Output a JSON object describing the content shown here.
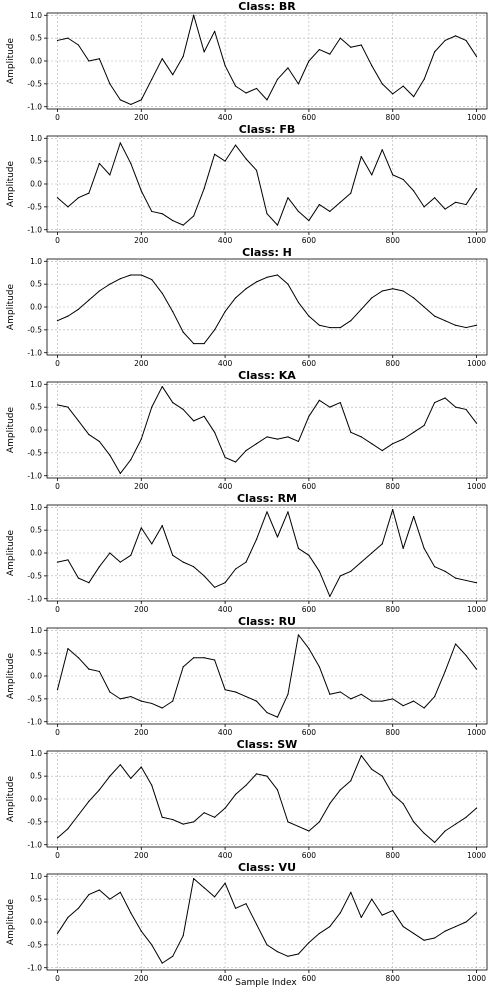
{
  "figure": {
    "xlabel": "Sample Index",
    "ylabel": "Amplitude"
  },
  "chart_data": [
    {
      "type": "line",
      "title": "Class: BR",
      "ylabel": "Amplitude",
      "xlabel": "",
      "xlim": [
        -25,
        1025
      ],
      "ylim": [
        -1.05,
        1.05
      ],
      "xticks": [
        0,
        200,
        400,
        600,
        800,
        1000
      ],
      "yticks": [
        -1.0,
        -0.5,
        0.0,
        0.5,
        1.0
      ],
      "grid": true,
      "x": [
        0,
        25,
        50,
        75,
        100,
        125,
        150,
        175,
        200,
        225,
        250,
        275,
        300,
        325,
        350,
        375,
        400,
        425,
        450,
        475,
        500,
        525,
        550,
        575,
        600,
        625,
        650,
        675,
        700,
        725,
        750,
        775,
        800,
        825,
        850,
        875,
        900,
        925,
        950,
        975,
        1000
      ],
      "series": [
        {
          "values": [
            0.45,
            0.5,
            0.35,
            0.0,
            0.05,
            -0.5,
            -0.85,
            -0.95,
            -0.85,
            -0.4,
            0.05,
            -0.3,
            0.1,
            1.0,
            0.2,
            0.65,
            -0.1,
            -0.55,
            -0.7,
            -0.6,
            -0.85,
            -0.4,
            -0.15,
            -0.5,
            0.0,
            0.25,
            0.15,
            0.5,
            0.3,
            0.35,
            -0.1,
            -0.5,
            -0.72,
            -0.55,
            -0.78,
            -0.4,
            0.2,
            0.45,
            0.55,
            0.45,
            0.1
          ]
        }
      ]
    },
    {
      "type": "line",
      "title": "Class: FB",
      "ylabel": "Amplitude",
      "xlabel": "",
      "xlim": [
        -25,
        1025
      ],
      "ylim": [
        -1.05,
        1.05
      ],
      "xticks": [
        0,
        200,
        400,
        600,
        800,
        1000
      ],
      "yticks": [
        -1.0,
        -0.5,
        0.0,
        0.5,
        1.0
      ],
      "grid": true,
      "x": [
        0,
        25,
        50,
        75,
        100,
        125,
        150,
        175,
        200,
        225,
        250,
        275,
        300,
        325,
        350,
        375,
        400,
        425,
        450,
        475,
        500,
        525,
        550,
        575,
        600,
        625,
        650,
        675,
        700,
        725,
        750,
        775,
        800,
        825,
        850,
        875,
        900,
        925,
        950,
        975,
        1000
      ],
      "series": [
        {
          "values": [
            -0.3,
            -0.5,
            -0.3,
            -0.2,
            0.45,
            0.2,
            0.9,
            0.45,
            -0.15,
            -0.6,
            -0.65,
            -0.8,
            -0.9,
            -0.7,
            -0.1,
            0.65,
            0.5,
            0.85,
            0.55,
            0.3,
            -0.65,
            -0.9,
            -0.3,
            -0.6,
            -0.8,
            -0.45,
            -0.6,
            -0.4,
            -0.2,
            0.6,
            0.2,
            0.75,
            0.2,
            0.1,
            -0.15,
            -0.5,
            -0.3,
            -0.55,
            -0.4,
            -0.45,
            -0.1
          ]
        }
      ]
    },
    {
      "type": "line",
      "title": "Class: H",
      "ylabel": "Amplitude",
      "xlabel": "",
      "xlim": [
        -25,
        1025
      ],
      "ylim": [
        -1.05,
        1.05
      ],
      "xticks": [
        0,
        200,
        400,
        600,
        800,
        1000
      ],
      "yticks": [
        -1.0,
        -0.5,
        0.0,
        0.5,
        1.0
      ],
      "grid": true,
      "x": [
        0,
        25,
        50,
        75,
        100,
        125,
        150,
        175,
        200,
        225,
        250,
        275,
        300,
        325,
        350,
        375,
        400,
        425,
        450,
        475,
        500,
        525,
        550,
        575,
        600,
        625,
        650,
        675,
        700,
        725,
        750,
        775,
        800,
        825,
        850,
        875,
        900,
        925,
        950,
        975,
        1000
      ],
      "series": [
        {
          "values": [
            -0.3,
            -0.2,
            -0.05,
            0.15,
            0.35,
            0.5,
            0.62,
            0.7,
            0.7,
            0.6,
            0.3,
            -0.1,
            -0.55,
            -0.8,
            -0.8,
            -0.5,
            -0.1,
            0.2,
            0.4,
            0.55,
            0.65,
            0.7,
            0.5,
            0.1,
            -0.2,
            -0.4,
            -0.45,
            -0.45,
            -0.3,
            -0.05,
            0.2,
            0.35,
            0.4,
            0.35,
            0.2,
            0.0,
            -0.2,
            -0.3,
            -0.4,
            -0.45,
            -0.4
          ]
        }
      ]
    },
    {
      "type": "line",
      "title": "Class: KA",
      "ylabel": "Amplitude",
      "xlabel": "",
      "xlim": [
        -25,
        1025
      ],
      "ylim": [
        -1.05,
        1.05
      ],
      "xticks": [
        0,
        200,
        400,
        600,
        800,
        1000
      ],
      "yticks": [
        -1.0,
        -0.5,
        0.0,
        0.5,
        1.0
      ],
      "grid": true,
      "x": [
        0,
        25,
        50,
        75,
        100,
        125,
        150,
        175,
        200,
        225,
        250,
        275,
        300,
        325,
        350,
        375,
        400,
        425,
        450,
        475,
        500,
        525,
        550,
        575,
        600,
        625,
        650,
        675,
        700,
        725,
        750,
        775,
        800,
        825,
        850,
        875,
        900,
        925,
        950,
        975,
        1000
      ],
      "series": [
        {
          "values": [
            0.55,
            0.5,
            0.2,
            -0.1,
            -0.25,
            -0.55,
            -0.95,
            -0.65,
            -0.2,
            0.5,
            0.95,
            0.6,
            0.45,
            0.2,
            0.3,
            -0.05,
            -0.6,
            -0.7,
            -0.45,
            -0.3,
            -0.15,
            -0.2,
            -0.15,
            -0.25,
            0.3,
            0.65,
            0.5,
            0.6,
            -0.05,
            -0.15,
            -0.3,
            -0.45,
            -0.3,
            -0.2,
            -0.05,
            0.1,
            0.6,
            0.7,
            0.5,
            0.45,
            0.15
          ]
        }
      ]
    },
    {
      "type": "line",
      "title": "Class: RM",
      "ylabel": "Amplitude",
      "xlabel": "",
      "xlim": [
        -25,
        1025
      ],
      "ylim": [
        -1.05,
        1.05
      ],
      "xticks": [
        0,
        200,
        400,
        600,
        800,
        1000
      ],
      "yticks": [
        -1.0,
        -0.5,
        0.0,
        0.5,
        1.0
      ],
      "grid": true,
      "x": [
        0,
        25,
        50,
        75,
        100,
        125,
        150,
        175,
        200,
        225,
        250,
        275,
        300,
        325,
        350,
        375,
        400,
        425,
        450,
        475,
        500,
        525,
        550,
        575,
        600,
        625,
        650,
        675,
        700,
        725,
        750,
        775,
        800,
        825,
        850,
        875,
        900,
        925,
        950,
        975,
        1000
      ],
      "series": [
        {
          "values": [
            -0.2,
            -0.15,
            -0.55,
            -0.65,
            -0.3,
            0.0,
            -0.2,
            -0.05,
            0.55,
            0.2,
            0.6,
            -0.05,
            -0.2,
            -0.3,
            -0.5,
            -0.75,
            -0.65,
            -0.35,
            -0.2,
            0.3,
            0.9,
            0.35,
            0.9,
            0.1,
            -0.05,
            -0.4,
            -0.95,
            -0.5,
            -0.4,
            -0.2,
            0.0,
            0.2,
            0.95,
            0.1,
            0.8,
            0.1,
            -0.3,
            -0.4,
            -0.55,
            -0.6,
            -0.65
          ]
        }
      ]
    },
    {
      "type": "line",
      "title": "Class: RU",
      "ylabel": "Amplitude",
      "xlabel": "",
      "xlim": [
        -25,
        1025
      ],
      "ylim": [
        -1.05,
        1.05
      ],
      "xticks": [
        0,
        200,
        400,
        600,
        800,
        1000
      ],
      "yticks": [
        -1.0,
        -0.5,
        0.0,
        0.5,
        1.0
      ],
      "grid": true,
      "x": [
        0,
        25,
        50,
        75,
        100,
        125,
        150,
        175,
        200,
        225,
        250,
        275,
        300,
        325,
        350,
        375,
        400,
        425,
        450,
        475,
        500,
        525,
        550,
        575,
        600,
        625,
        650,
        675,
        700,
        725,
        750,
        775,
        800,
        825,
        850,
        875,
        900,
        925,
        950,
        975,
        1000
      ],
      "series": [
        {
          "values": [
            -0.3,
            0.6,
            0.4,
            0.15,
            0.1,
            -0.35,
            -0.5,
            -0.45,
            -0.55,
            -0.6,
            -0.7,
            -0.55,
            0.2,
            0.4,
            0.4,
            0.35,
            -0.3,
            -0.35,
            -0.45,
            -0.55,
            -0.8,
            -0.9,
            -0.4,
            0.9,
            0.6,
            0.2,
            -0.4,
            -0.35,
            -0.5,
            -0.4,
            -0.55,
            -0.55,
            -0.5,
            -0.65,
            -0.55,
            -0.7,
            -0.45,
            0.1,
            0.7,
            0.45,
            0.15
          ]
        }
      ]
    },
    {
      "type": "line",
      "title": "Class: SW",
      "ylabel": "Amplitude",
      "xlabel": "",
      "xlim": [
        -25,
        1025
      ],
      "ylim": [
        -1.05,
        1.05
      ],
      "xticks": [
        0,
        200,
        400,
        600,
        800,
        1000
      ],
      "yticks": [
        -1.0,
        -0.5,
        0.0,
        0.5,
        1.0
      ],
      "grid": true,
      "x": [
        0,
        25,
        50,
        75,
        100,
        125,
        150,
        175,
        200,
        225,
        250,
        275,
        300,
        325,
        350,
        375,
        400,
        425,
        450,
        475,
        500,
        525,
        550,
        575,
        600,
        625,
        650,
        675,
        700,
        725,
        750,
        775,
        800,
        825,
        850,
        875,
        900,
        925,
        950,
        975,
        1000
      ],
      "series": [
        {
          "values": [
            -0.85,
            -0.65,
            -0.35,
            -0.05,
            0.2,
            0.5,
            0.75,
            0.45,
            0.7,
            0.3,
            -0.4,
            -0.45,
            -0.55,
            -0.5,
            -0.3,
            -0.4,
            -0.2,
            0.1,
            0.3,
            0.55,
            0.5,
            0.2,
            -0.5,
            -0.6,
            -0.7,
            -0.5,
            -0.1,
            0.2,
            0.4,
            0.95,
            0.65,
            0.5,
            0.1,
            -0.1,
            -0.5,
            -0.75,
            -0.95,
            -0.7,
            -0.55,
            -0.4,
            -0.2
          ]
        }
      ]
    },
    {
      "type": "line",
      "title": "Class: VU",
      "ylabel": "Amplitude",
      "xlabel": "Sample Index",
      "xlim": [
        -25,
        1025
      ],
      "ylim": [
        -1.05,
        1.05
      ],
      "xticks": [
        0,
        200,
        400,
        600,
        800,
        1000
      ],
      "yticks": [
        -1.0,
        -0.5,
        0.0,
        0.5,
        1.0
      ],
      "grid": true,
      "x": [
        0,
        25,
        50,
        75,
        100,
        125,
        150,
        175,
        200,
        225,
        250,
        275,
        300,
        325,
        350,
        375,
        400,
        425,
        450,
        475,
        500,
        525,
        550,
        575,
        600,
        625,
        650,
        675,
        700,
        725,
        750,
        775,
        800,
        825,
        850,
        875,
        900,
        925,
        950,
        975,
        1000
      ],
      "series": [
        {
          "values": [
            -0.25,
            0.1,
            0.3,
            0.6,
            0.7,
            0.5,
            0.65,
            0.2,
            -0.2,
            -0.5,
            -0.9,
            -0.75,
            -0.3,
            0.95,
            0.75,
            0.55,
            0.85,
            0.3,
            0.4,
            -0.05,
            -0.5,
            -0.65,
            -0.75,
            -0.7,
            -0.45,
            -0.25,
            -0.1,
            0.2,
            0.65,
            0.1,
            0.5,
            0.15,
            0.25,
            -0.1,
            -0.25,
            -0.4,
            -0.35,
            -0.2,
            -0.1,
            0.0,
            0.2
          ]
        }
      ]
    }
  ]
}
